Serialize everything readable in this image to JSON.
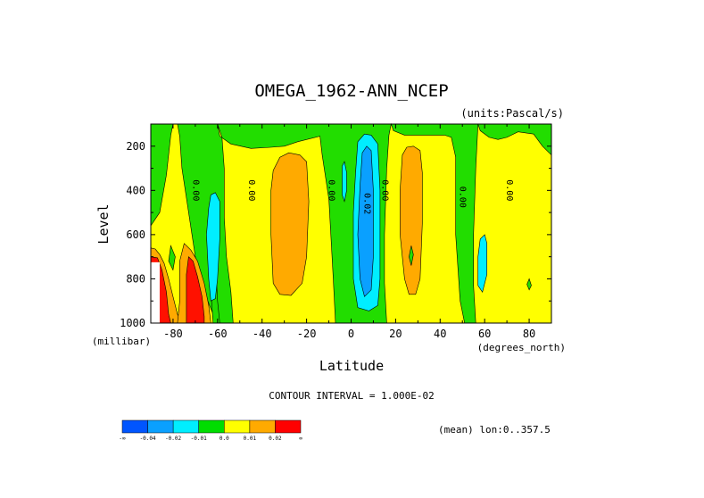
{
  "chart_data": {
    "type": "heatmap",
    "title": "OMEGA_1962-ANN_NCEP",
    "units_label": "(units:Pascal/s)",
    "xlabel": "Latitude",
    "ylabel": "Level",
    "x_unit_label": "(degrees_north)",
    "y_unit_label": "(millibar)",
    "xlim": [
      -90,
      90
    ],
    "ylim": [
      1000,
      100
    ],
    "x_ticks": [
      -80,
      -60,
      -40,
      -20,
      0,
      20,
      40,
      60,
      80
    ],
    "x_tick_labels": [
      "-80",
      "-60",
      "-40",
      "-20",
      "0",
      "20",
      "40",
      "60",
      "80"
    ],
    "y_ticks": [
      200,
      400,
      600,
      800,
      1000
    ],
    "y_tick_labels": [
      "200",
      "400",
      "600",
      "800",
      "1000"
    ],
    "contour_labels": [
      {
        "text": "0.00",
        "lat": -71,
        "level": 400
      },
      {
        "text": "0.00",
        "lat": -46,
        "level": 400
      },
      {
        "text": "0.00",
        "lat": -10,
        "level": 400
      },
      {
        "text": "0.02",
        "lat": 6,
        "level": 460
      },
      {
        "text": "0.00",
        "lat": 14,
        "level": 400
      },
      {
        "text": "0.00",
        "lat": 49,
        "level": 430
      },
      {
        "text": "0.00",
        "lat": 70,
        "level": 400
      }
    ],
    "contour_interval_text": "CONTOUR INTERVAL = 1.000E-02",
    "subset_text": "(mean) lon:0..357.5",
    "legend": {
      "labels": [
        "-∞",
        "-0.04",
        "-0.02",
        "-0.01",
        "0.0",
        "0.01",
        "0.02",
        "∞"
      ],
      "colors": [
        "#0055ff",
        "#0aa0ff",
        "#00eeff",
        "#00dd00",
        "#ffff00",
        "#ffaa00",
        "#ff0000"
      ],
      "boundaries": [
        "-inf",
        -0.04,
        -0.02,
        -0.01,
        0.0,
        0.01,
        0.02,
        "inf"
      ]
    },
    "colors": {
      "green": "#22dd00",
      "yellow": "#ffff00",
      "orange": "#ffaa00",
      "red": "#ff1100",
      "cyan": "#00eeff",
      "blue": "#0aa0ff"
    }
  }
}
